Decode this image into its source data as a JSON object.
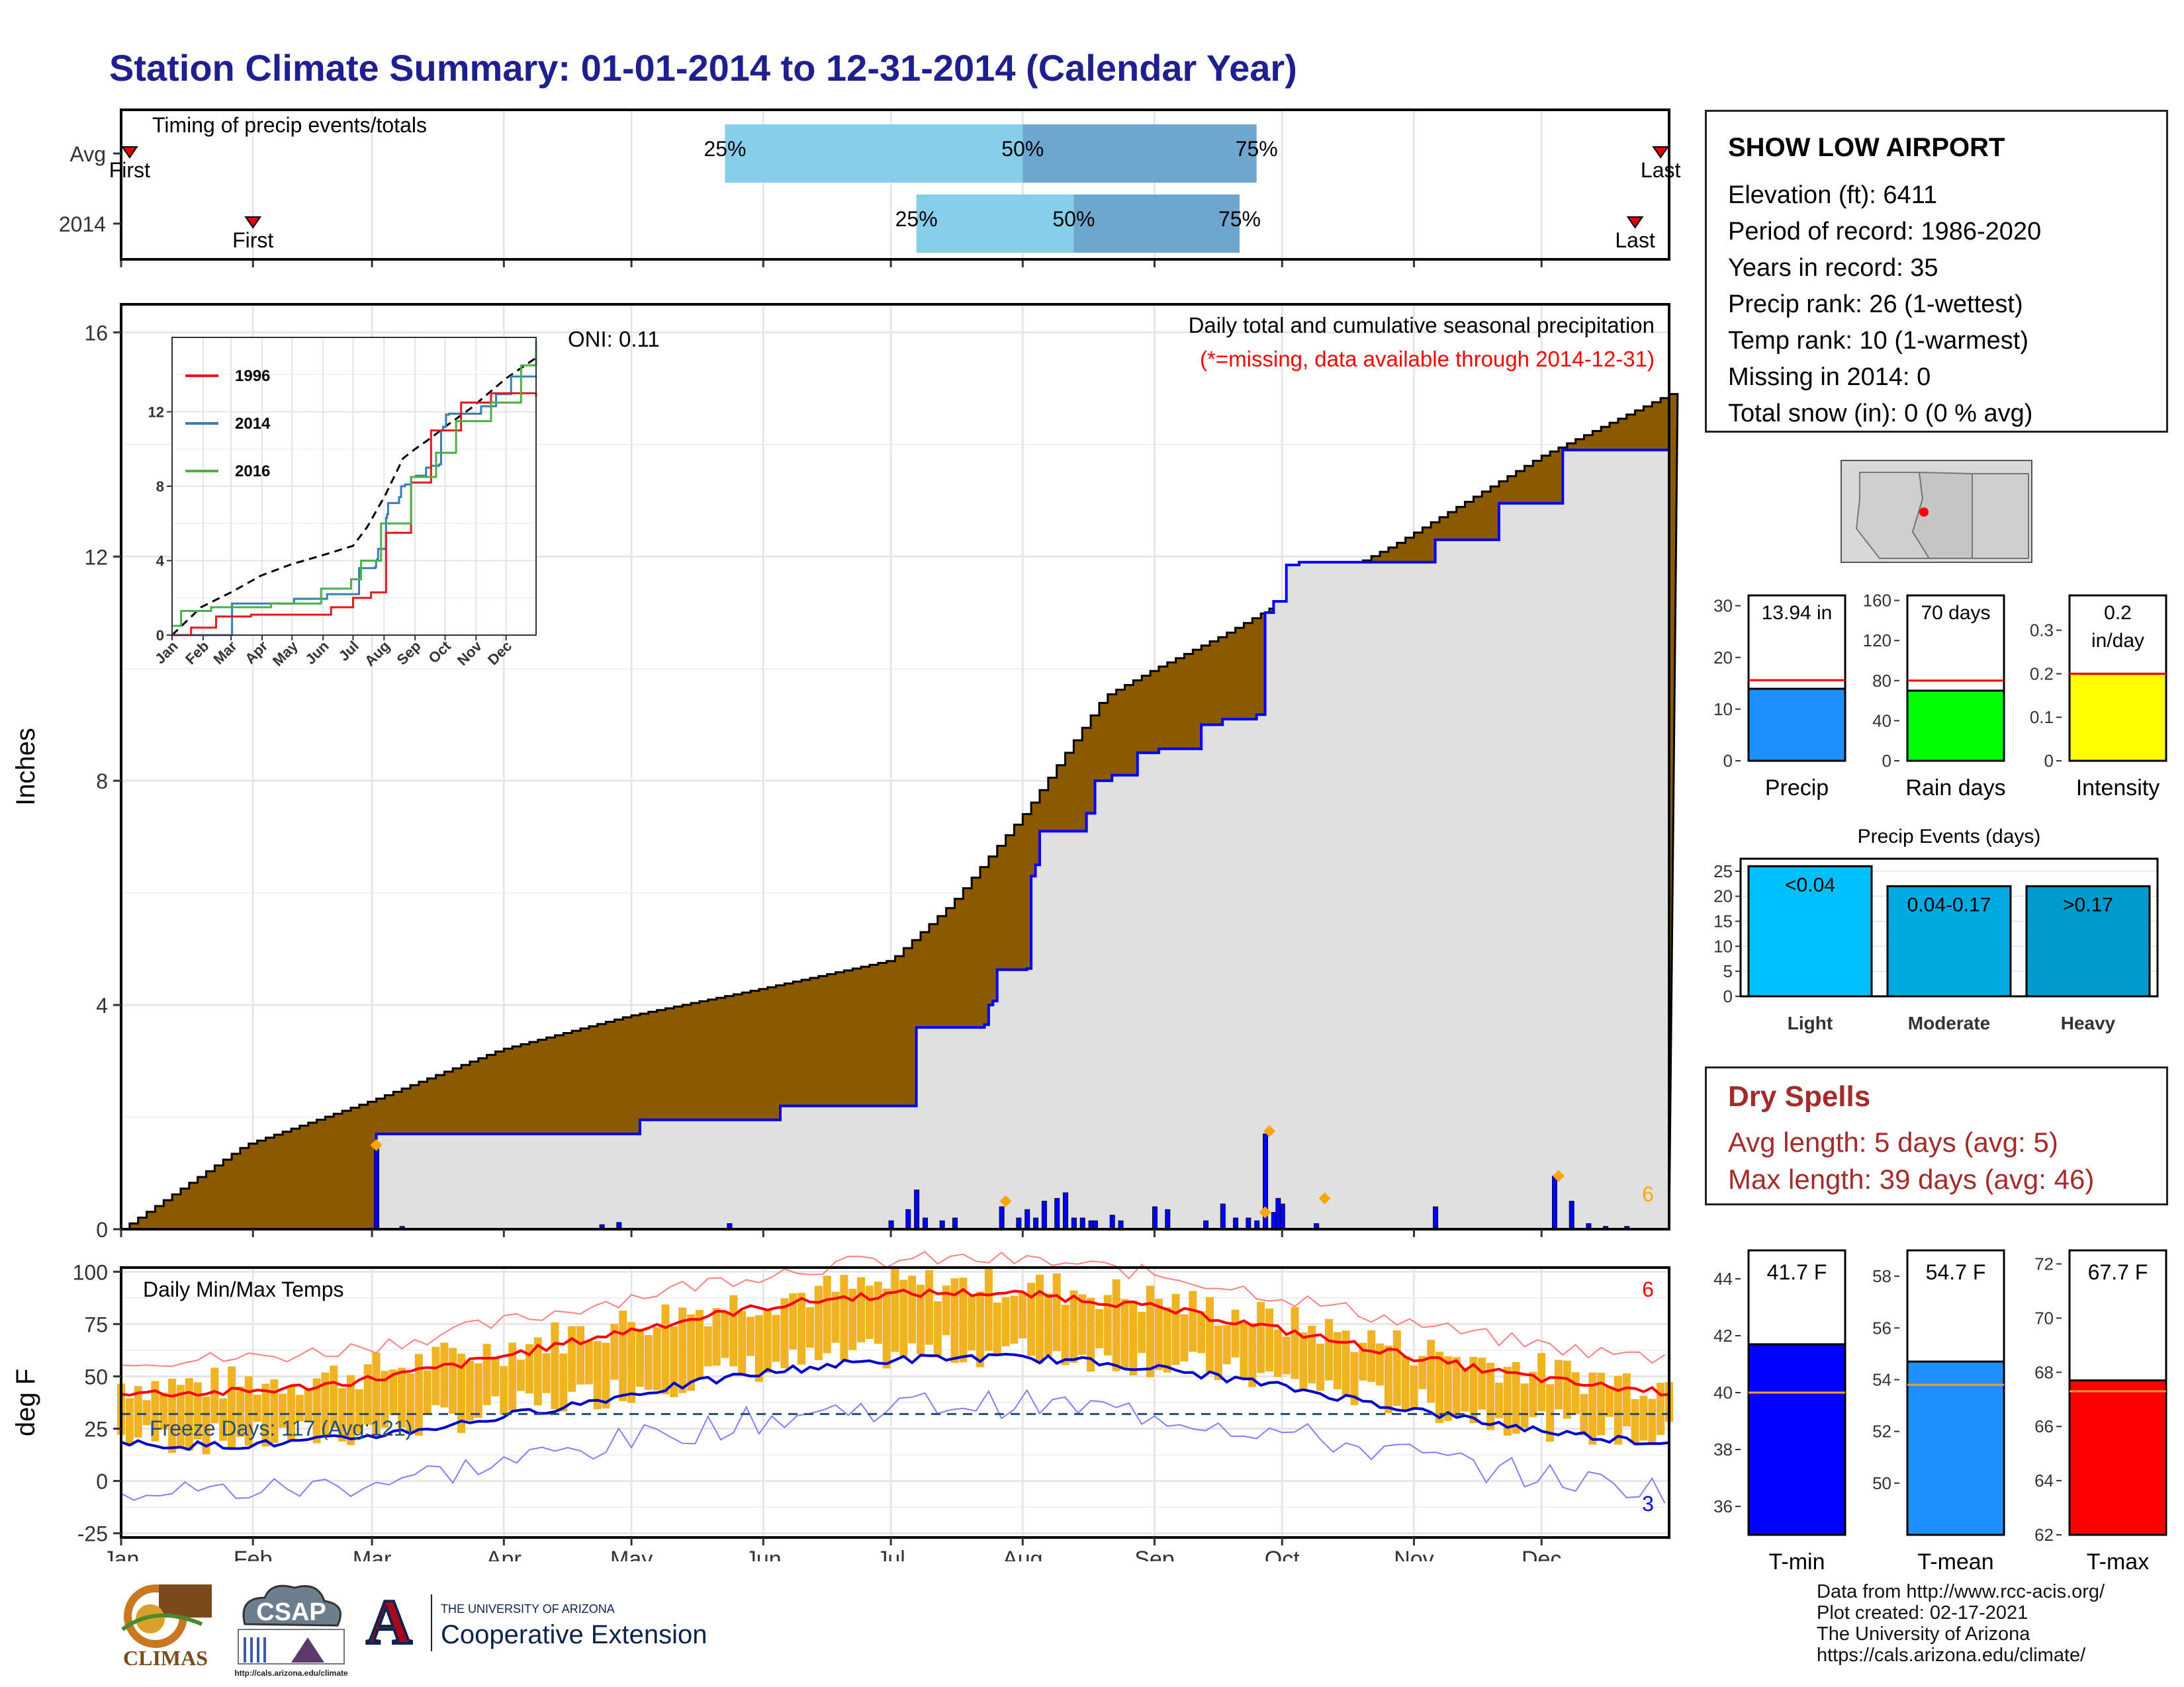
{
  "title": "Station Climate Summary: 01-01-2014 to 12-31-2014 (Calendar Year)",
  "station": {
    "name": "SHOW LOW AIRPORT",
    "lines": [
      "Elevation (ft): 6411",
      "Period of record: 1986-2020",
      "Years in record: 35",
      "Precip rank: 26 (1-wettest)",
      "Temp rank: 10 (1-warmest)",
      "Missing in 2014: 0",
      "Total snow (in): 0 (0 % avg)"
    ]
  },
  "dry_spells": {
    "title": "Dry Spells",
    "avg_line": "Avg length: 5 days (avg: 5)",
    "max_line": "Max length: 39 days (avg: 46)"
  },
  "credits": [
    "Data from http://www.rcc-acis.org/",
    "Plot created: 02-17-2021",
    "The University of Arizona",
    "https://cals.arizona.edu/climate/"
  ],
  "logos": {
    "climas": "CLIMAS",
    "csap": "CSAP",
    "csap_url": "http://cals.arizona.edu/climate",
    "ua_letter": "A",
    "ua_top": "THE UNIVERSITY OF ARIZONA",
    "ua_bottom": "Cooperative Extension"
  },
  "colors": {
    "title": "#1f1f8f",
    "accum_avg": "#8B5A00",
    "accum_obs": "#e0e0e0",
    "obs_line": "#0000ff",
    "tmax": "#ff0000",
    "tmin": "#0000cc",
    "range": "#f0b323",
    "dry": "#a52a2a"
  },
  "chart_data": [
    {
      "type": "bar",
      "role": "timing",
      "title": "Timing of precip events/totals",
      "categories": [
        "Avg",
        "2014"
      ],
      "rows": [
        {
          "label": "Avg",
          "first": "Jan 3",
          "p25": "May 23",
          "p50": "Aug 1",
          "p75": "Sep 25",
          "last": "Dec 29"
        },
        {
          "label": "2014",
          "first": "Feb 1",
          "p25": "Jul 7",
          "p50": "Aug 13",
          "p75": "Sep 21",
          "last": "Dec 23"
        }
      ],
      "marker_labels": {
        "first": "First",
        "last": "Last",
        "p25": "25%",
        "p50": "50%",
        "p75": "75%"
      }
    },
    {
      "type": "area",
      "role": "main_precip",
      "title": "Daily total and cumulative seasonal precipitation",
      "subtitle": "(*=missing, data available through 2014-12-31)",
      "annotation": "ONI: 0.11",
      "ylabel": "Inches",
      "ylim": [
        0,
        16.5
      ],
      "yticks": [
        0,
        4,
        8,
        12,
        16
      ],
      "x_months": [
        "Jan",
        "Feb",
        "Mar",
        "Apr",
        "May",
        "Jun",
        "Jul",
        "Aug",
        "Sep",
        "Oct",
        "Nov",
        "Dec"
      ],
      "avg_cumulative": {
        "doy": [
          1,
          30,
          60,
          90,
          120,
          152,
          182,
          196,
          214,
          232,
          244,
          260,
          274,
          300,
          335,
          365
        ],
        "inches": [
          0,
          1.5,
          2.3,
          3.2,
          3.8,
          4.3,
          4.8,
          5.8,
          7.5,
          9.5,
          10.0,
          10.6,
          11.2,
          12.2,
          13.8,
          14.9
        ]
      },
      "obs_cumulative": {
        "doy": [
          1,
          60,
          61,
          122,
          123,
          155,
          156,
          187,
          188,
          204,
          205,
          206,
          207,
          214,
          215,
          216,
          217,
          228,
          230,
          234,
          240,
          245,
          255,
          260,
          268,
          270,
          271,
          272,
          275,
          278,
          310,
          325,
          340,
          365
        ],
        "inches": [
          0,
          0,
          1.7,
          1.7,
          1.95,
          1.95,
          2.2,
          2.2,
          3.6,
          3.65,
          4.0,
          4.07,
          4.63,
          4.65,
          6.3,
          6.5,
          7.1,
          7.42,
          8.0,
          8.1,
          8.5,
          8.57,
          9.0,
          9.1,
          9.18,
          11.0,
          11.0,
          11.2,
          11.85,
          11.9,
          12.3,
          12.95,
          13.9,
          13.94
        ]
      },
      "daily_bars": {
        "doy": [
          61,
          67,
          114,
          118,
          144,
          182,
          186,
          188,
          190,
          194,
          197,
          208,
          212,
          214,
          216,
          218,
          221,
          223,
          225,
          227,
          229,
          230,
          234,
          236,
          244,
          247,
          256,
          260,
          263,
          266,
          268,
          270,
          272,
          273,
          274,
          282,
          310,
          338,
          342,
          346,
          350,
          355
        ],
        "inches": [
          1.5,
          0.05,
          0.08,
          0.12,
          0.1,
          0.15,
          0.35,
          0.7,
          0.2,
          0.15,
          0.2,
          0.4,
          0.2,
          0.35,
          0.2,
          0.5,
          0.55,
          0.65,
          0.2,
          0.2,
          0.15,
          0.15,
          0.25,
          0.15,
          0.4,
          0.35,
          0.15,
          0.45,
          0.2,
          0.2,
          0.15,
          1.7,
          0.3,
          0.55,
          0.45,
          0.1,
          0.4,
          0.95,
          0.5,
          0.1,
          0.05,
          0.05
        ]
      },
      "markers": {
        "doy": [
          61,
          209,
          270,
          271,
          284,
          339
        ],
        "inches": [
          1.5,
          0.5,
          0.3,
          1.75,
          0.55,
          0.95
        ]
      },
      "corner_label": "6"
    },
    {
      "type": "line",
      "role": "inset_cumulative",
      "series": [
        {
          "name": "1996",
          "color": "#e41a1c"
        },
        {
          "name": "2014",
          "color": "#377eb8"
        },
        {
          "name": "2016",
          "color": "#4daf4a"
        }
      ],
      "yticks": [
        0,
        4,
        8,
        12
      ],
      "ylim": [
        0,
        16
      ],
      "x_months": [
        "Jan",
        "Feb",
        "Mar",
        "Apr",
        "May",
        "Jun",
        "Jul",
        "Aug",
        "Sep",
        "Oct",
        "Nov",
        "Dec"
      ]
    },
    {
      "type": "bar",
      "role": "temps",
      "title": "Daily Min/Max Temps",
      "ylabel": "deg F",
      "ylim": [
        -27,
        102
      ],
      "yticks": [
        -25,
        0,
        25,
        50,
        75,
        100
      ],
      "freeze_label": "Freeze Days: 117 (Avg:121)",
      "freeze_level": 32,
      "corner_top": "6",
      "corner_bottom": "3",
      "x_months": [
        "Jan",
        "Feb",
        "Mar",
        "Apr",
        "May",
        "Jun",
        "Jul",
        "Aug",
        "Sep",
        "Oct",
        "Nov",
        "Dec"
      ]
    },
    {
      "type": "bar",
      "role": "precip_total",
      "xlabel": "Precip",
      "value": 13.94,
      "value_label": "13.94 in",
      "avg": 15.6,
      "ylim": [
        0,
        32
      ],
      "yticks": [
        0,
        10,
        20,
        30
      ],
      "color": "#1e90ff"
    },
    {
      "type": "bar",
      "role": "rain_days",
      "xlabel": "Rain days",
      "value": 70,
      "value_label": "70 days",
      "avg": 80,
      "ylim": [
        0,
        165
      ],
      "yticks": [
        0,
        40,
        80,
        120,
        160
      ],
      "color": "#00ff00"
    },
    {
      "type": "bar",
      "role": "intensity",
      "xlabel": "Intensity",
      "value": 0.2,
      "value_label": [
        "0.2",
        "in/day"
      ],
      "avg": 0.2,
      "ylim": [
        0,
        0.38
      ],
      "yticks": [
        0.0,
        0.1,
        0.2,
        0.3
      ],
      "color": "#ffff00"
    },
    {
      "type": "bar",
      "role": "precip_events",
      "title": "Precip Events (days)",
      "categories": [
        "Light",
        "Moderate",
        "Heavy"
      ],
      "values": [
        26,
        22,
        22
      ],
      "bar_labels": [
        "<0.04",
        "0.04-0.17",
        ">0.17"
      ],
      "ylim": [
        0,
        27.5
      ],
      "yticks": [
        0,
        5,
        10,
        15,
        20,
        25
      ],
      "colors": [
        "#00bfff",
        "#00aae0",
        "#0099cc"
      ]
    },
    {
      "type": "bar",
      "role": "tmin",
      "xlabel": "T-min",
      "value": 41.7,
      "value_label": "41.7 F",
      "avg": 40.0,
      "ylim": [
        35,
        45
      ],
      "yticks": [
        36,
        38,
        40,
        42,
        44
      ],
      "color": "#0000ff"
    },
    {
      "type": "bar",
      "role": "tmean",
      "xlabel": "T-mean",
      "value": 54.7,
      "value_label": "54.7 F",
      "avg": 53.8,
      "ylim": [
        48,
        59
      ],
      "yticks": [
        50,
        52,
        54,
        56,
        58
      ],
      "color": "#1e90ff"
    },
    {
      "type": "bar",
      "role": "tmax",
      "xlabel": "T-max",
      "value": 67.7,
      "value_label": "67.7 F",
      "avg": 67.3,
      "ylim": [
        62,
        72.5
      ],
      "yticks": [
        62,
        64,
        66,
        68,
        70,
        72
      ],
      "color": "#ff0000"
    }
  ]
}
